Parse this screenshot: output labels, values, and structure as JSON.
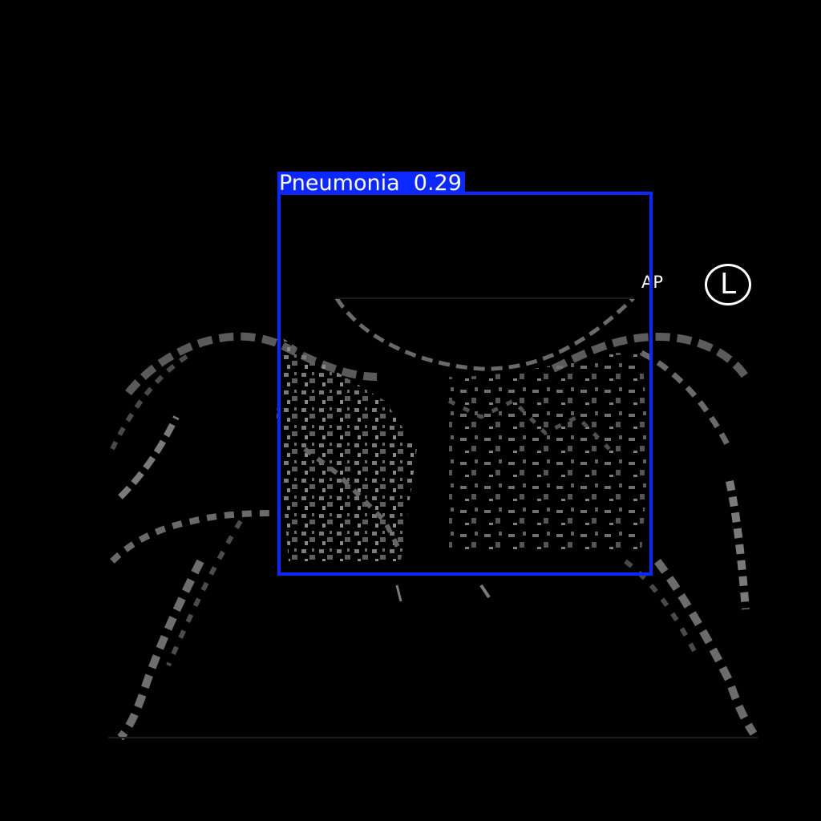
{
  "image": {
    "view_label": "AP",
    "side_marker": "L"
  },
  "detection": {
    "label": "Pneumonia  0.29",
    "color": "#0a28ff"
  }
}
